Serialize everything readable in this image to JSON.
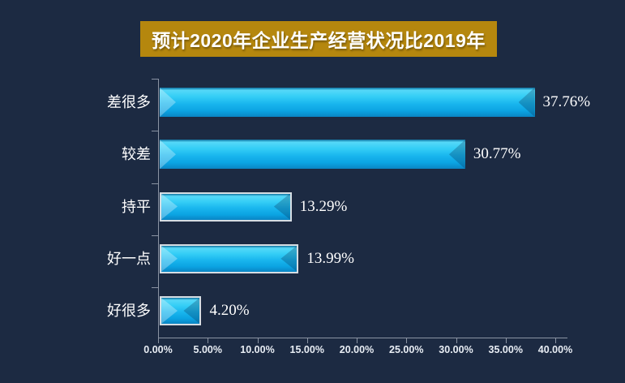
{
  "title": {
    "text": "预计2020年企业生产经营状况比2019年",
    "bg_color": "#B5870E",
    "text_color": "#FFFFFF"
  },
  "chart_data": {
    "type": "bar",
    "orientation": "horizontal",
    "title": "预计2020年企业生产经营状况比2019年",
    "categories": [
      "差很多",
      "较差",
      "持平",
      "好一点",
      "好很多"
    ],
    "values": [
      37.76,
      30.77,
      13.29,
      13.99,
      4.2
    ],
    "value_labels": [
      "37.76%",
      "30.77%",
      "13.29%",
      "13.99%",
      "4.20%"
    ],
    "xlim": [
      0,
      40
    ],
    "x_tick_labels": [
      "0.00%",
      "5.00%",
      "10.00%",
      "15.00%",
      "20.00%",
      "25.00%",
      "30.00%",
      "35.00%",
      "40.00%"
    ],
    "grid": false,
    "legend": "none",
    "background_color": "#1C2A42",
    "axis_color": "#8A93A3",
    "tick_label_color": "#E8EDF4",
    "category_label_color": "#FFFFFF",
    "value_label_color": "#FFFFFF",
    "bar_color_top": "#55D8F8",
    "bar_color_mid": "#19B6EE",
    "bar_color_bottom": "#0A85C4",
    "bordered_bars": [
      false,
      false,
      true,
      true,
      true
    ]
  }
}
